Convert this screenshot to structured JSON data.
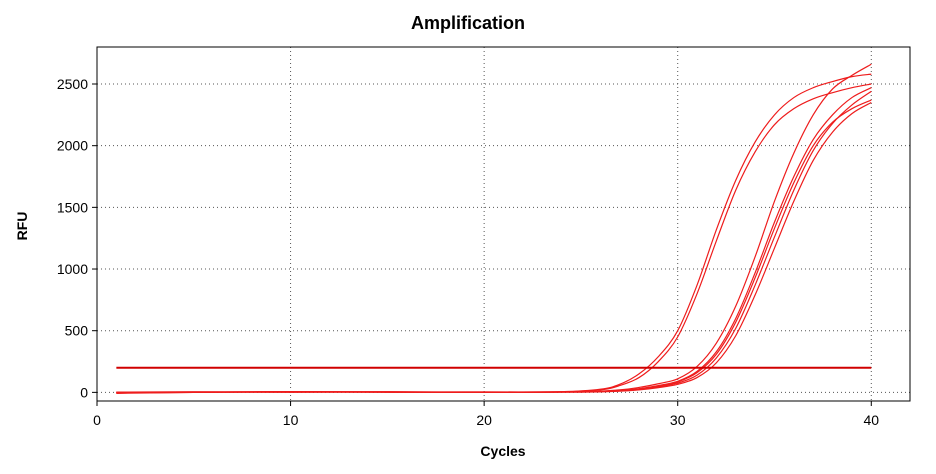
{
  "chart_data": {
    "type": "line",
    "title": "Amplification",
    "xlabel": "Cycles",
    "ylabel": "RFU",
    "xlim": [
      0,
      42
    ],
    "ylim": [
      -70,
      2800
    ],
    "xticks": [
      0,
      10,
      20,
      30,
      40
    ],
    "yticks": [
      0,
      500,
      1000,
      1500,
      2000,
      2500
    ],
    "grid": true,
    "threshold": {
      "x": [
        1,
        40
      ],
      "y": 200
    },
    "colors": {
      "series": "#ee1c1c",
      "threshold": "#d00000",
      "grid": "#555555",
      "axis": "#000000"
    },
    "series": [
      {
        "x": [
          1,
          5,
          10,
          15,
          20,
          24,
          26,
          27,
          28,
          29,
          30,
          31,
          32,
          33,
          34,
          35,
          36,
          37,
          38,
          39,
          40
        ],
        "y": [
          0,
          3,
          5,
          3,
          2,
          5,
          25,
          65,
          150,
          290,
          500,
          870,
          1320,
          1720,
          2030,
          2250,
          2390,
          2470,
          2520,
          2560,
          2580
        ]
      },
      {
        "x": [
          1,
          5,
          10,
          15,
          20,
          24,
          26,
          27,
          28,
          29,
          30,
          31,
          32,
          33,
          34,
          35,
          36,
          37,
          38,
          39,
          40
        ],
        "y": [
          -8,
          0,
          6,
          2,
          0,
          3,
          20,
          55,
          120,
          250,
          450,
          800,
          1230,
          1640,
          1950,
          2170,
          2300,
          2380,
          2430,
          2470,
          2500
        ]
      },
      {
        "x": [
          1,
          5,
          10,
          15,
          20,
          25,
          27,
          28,
          29,
          30,
          31,
          32,
          33,
          34,
          35,
          36,
          37,
          38,
          39,
          40
        ],
        "y": [
          0,
          2,
          4,
          2,
          3,
          5,
          20,
          40,
          70,
          110,
          210,
          400,
          700,
          1100,
          1550,
          1940,
          2250,
          2460,
          2570,
          2660
        ]
      },
      {
        "x": [
          1,
          5,
          10,
          15,
          20,
          25,
          27,
          28,
          29,
          30,
          31,
          32,
          33,
          34,
          35,
          36,
          37,
          38,
          39,
          40
        ],
        "y": [
          -5,
          1,
          3,
          4,
          1,
          4,
          15,
          30,
          55,
          90,
          170,
          330,
          600,
          970,
          1380,
          1750,
          2050,
          2250,
          2390,
          2470
        ]
      },
      {
        "x": [
          1,
          5,
          10,
          15,
          20,
          25,
          27,
          28,
          29,
          30,
          31,
          32,
          33,
          34,
          35,
          36,
          37,
          38,
          39,
          40
        ],
        "y": [
          0,
          3,
          2,
          5,
          2,
          3,
          12,
          25,
          45,
          75,
          140,
          280,
          520,
          870,
          1260,
          1640,
          1960,
          2180,
          2330,
          2440
        ]
      },
      {
        "x": [
          1,
          5,
          10,
          15,
          20,
          25,
          27,
          28,
          29,
          30,
          31,
          32,
          33,
          34,
          35,
          36,
          37,
          38,
          39,
          40
        ],
        "y": [
          -3,
          0,
          5,
          1,
          3,
          2,
          10,
          20,
          38,
          65,
          120,
          240,
          460,
          790,
          1170,
          1550,
          1880,
          2110,
          2260,
          2350
        ]
      },
      {
        "x": [
          1,
          5,
          10,
          15,
          20,
          25,
          27,
          28,
          29,
          30,
          31,
          32,
          33,
          34,
          35,
          36,
          37,
          38,
          39,
          40
        ],
        "y": [
          2,
          4,
          1,
          3,
          0,
          4,
          14,
          28,
          50,
          85,
          160,
          310,
          570,
          930,
          1330,
          1700,
          2000,
          2190,
          2300,
          2370
        ]
      }
    ]
  }
}
